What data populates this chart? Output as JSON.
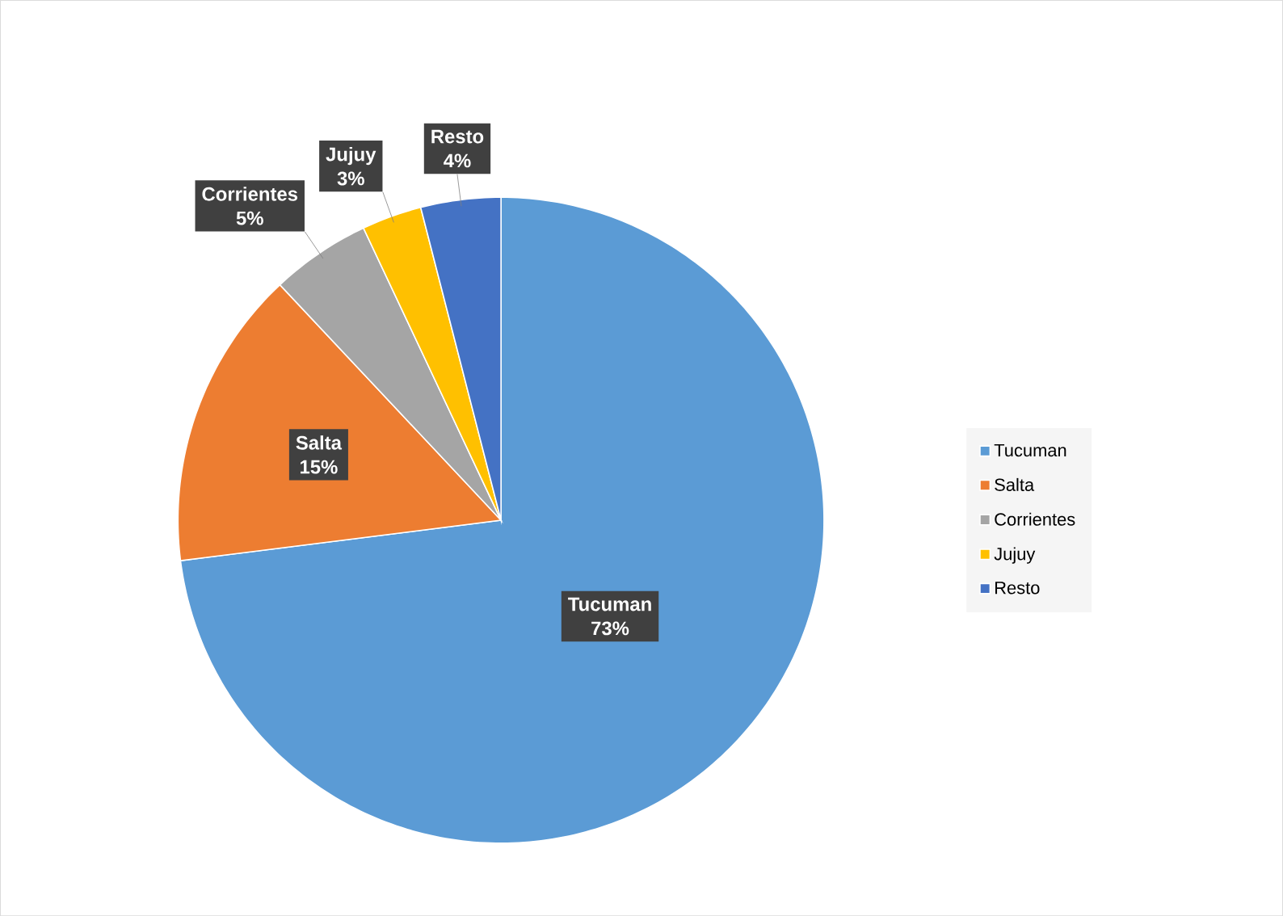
{
  "chart_data": {
    "type": "pie",
    "categories": [
      "Tucuman",
      "Salta",
      "Corrientes",
      "Jujuy",
      "Resto"
    ],
    "values": [
      73,
      15,
      5,
      3,
      4
    ],
    "value_labels": [
      "73%",
      "15%",
      "5%",
      "3%",
      "4%"
    ],
    "colors": [
      "#5b9bd5",
      "#ed7d31",
      "#a5a5a5",
      "#ffc000",
      "#4472c4"
    ],
    "legend": "right"
  }
}
